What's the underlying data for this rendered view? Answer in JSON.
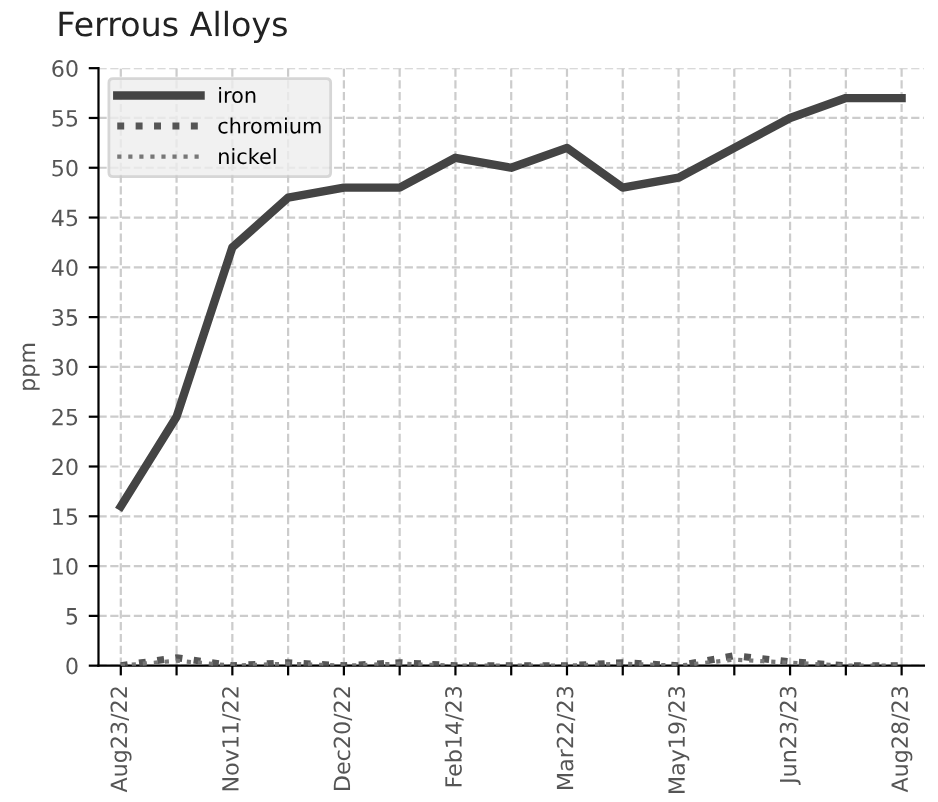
{
  "chart_data": {
    "type": "line",
    "title": "Ferrous Alloys",
    "ylabel": "ppm",
    "categories": [
      "Aug23/22",
      null,
      "Nov11/22",
      null,
      "Dec20/22",
      null,
      "Feb14/23",
      null,
      "Mar22/23",
      null,
      "May19/23",
      null,
      "Jun23/23",
      null,
      "Aug28/23"
    ],
    "series": [
      {
        "name": "iron",
        "color": "#444444",
        "line_style": "solid",
        "values": [
          16,
          25,
          42,
          47,
          48,
          48,
          51,
          50,
          52,
          48,
          49,
          52,
          55,
          57,
          57
        ]
      },
      {
        "name": "chromium",
        "color": "#555555",
        "line_style": "dotted",
        "values": [
          0,
          0.8,
          0,
          0.3,
          0,
          0.3,
          0,
          0,
          0,
          0.3,
          0,
          1,
          0.4,
          0,
          0
        ]
      },
      {
        "name": "nickel",
        "color": "#777777",
        "line_style": "dotted",
        "values": [
          0,
          0.5,
          0,
          0.2,
          0,
          0.2,
          0,
          0,
          0,
          0.2,
          0,
          0.6,
          0.3,
          0,
          0
        ]
      }
    ],
    "ylim": [
      0,
      60
    ],
    "yticks": [
      0,
      5,
      10,
      15,
      20,
      25,
      30,
      35,
      40,
      45,
      50,
      55,
      60
    ],
    "grid": true,
    "legend": "top left",
    "marker": "none"
  }
}
